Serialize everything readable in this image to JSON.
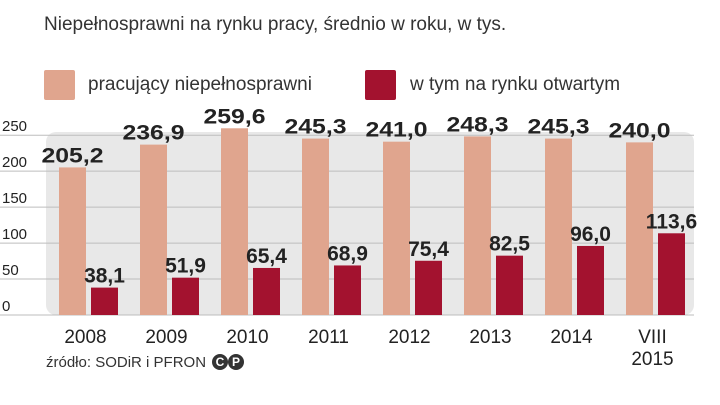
{
  "title": "Niepełnosprawni na rynku pracy, średnio w roku, w tys.",
  "legend": {
    "series1": "pracujący niepełnosprawni",
    "series2": "w tym na rynku otwartym"
  },
  "source": "źródło: SODiR i PFRON",
  "colors": {
    "series1": "#e0a58e",
    "series2": "#a3122f",
    "plot_band": "#e8e8e8",
    "grid": "#bdbdbd",
    "text": "#222222"
  },
  "chart_data": {
    "type": "bar",
    "categories": [
      "2008",
      "2009",
      "2010",
      "2011",
      "2012",
      "2013",
      "2014",
      "VIII 2015"
    ],
    "series": [
      {
        "name": "pracujący niepełnosprawni",
        "values": [
          205.2,
          236.9,
          259.6,
          245.3,
          241.0,
          248.3,
          245.3,
          240.0
        ],
        "labels": [
          "205,2",
          "236,9",
          "259,6",
          "245,3",
          "241,0",
          "248,3",
          "245,3",
          "240,0"
        ]
      },
      {
        "name": "w tym na rynku otwartym",
        "values": [
          38.1,
          51.9,
          65.4,
          68.9,
          75.4,
          82.5,
          96.0,
          113.6
        ],
        "labels": [
          "38,1",
          "51,9",
          "65,4",
          "68,9",
          "75,4",
          "82,5",
          "96,0",
          "113,6"
        ]
      }
    ],
    "yticks": [
      0,
      50,
      100,
      150,
      200,
      250
    ],
    "ylim": [
      0,
      260
    ],
    "title": "Niepełnosprawni na rynku pracy, średnio w roku, w tys.",
    "xlabel": "",
    "ylabel": ""
  }
}
